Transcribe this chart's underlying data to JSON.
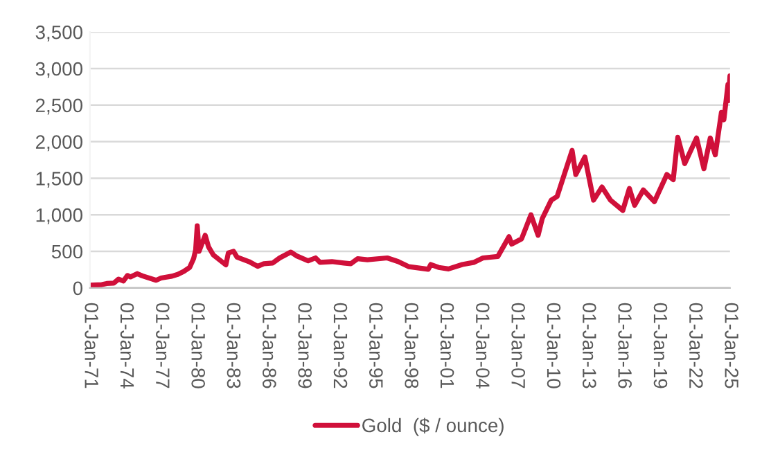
{
  "chart_data": {
    "type": "line",
    "x": [
      "1971-01-04",
      "1972-01-03",
      "1972-06-01",
      "1973-01-02",
      "1973-06-01",
      "1973-11-01",
      "1974-03-01",
      "1974-06-03",
      "1974-12-30",
      "1975-06-02",
      "1976-08-02",
      "1977-01-03",
      "1977-12-01",
      "1978-06-01",
      "1978-12-01",
      "1979-06-01",
      "1979-10-01",
      "1979-12-03",
      "1980-01-21",
      "1980-03-17",
      "1980-09-22",
      "1981-01-05",
      "1981-06-01",
      "1982-06-21",
      "1982-09-06",
      "1983-02-14",
      "1983-06-01",
      "1984-06-01",
      "1985-02-25",
      "1985-09-02",
      "1986-06-02",
      "1987-01-05",
      "1987-12-14",
      "1988-06-01",
      "1989-06-01",
      "1990-01-15",
      "1990-06-01",
      "1991-06-03",
      "1992-06-01",
      "1993-01-04",
      "1993-08-02",
      "1994-06-01",
      "1996-02-01",
      "1997-01-02",
      "1997-12-01",
      "1999-07-20",
      "1999-10-05",
      "2000-06-01",
      "2001-04-02",
      "2002-06-03",
      "2003-06-02",
      "2004-03-01",
      "2005-06-01",
      "2006-05-12",
      "2006-08-01",
      "2007-06-01",
      "2008-03-17",
      "2008-10-24",
      "2009-03-02",
      "2009-12-02",
      "2010-06-01",
      "2011-09-06",
      "2011-12-29",
      "2012-10-04",
      "2013-06-28",
      "2014-03-14",
      "2014-12-01",
      "2015-12-17",
      "2016-07-06",
      "2016-12-15",
      "2017-09-08",
      "2018-08-16",
      "2019-09-04",
      "2020-03-19",
      "2020-08-06",
      "2021-03-08",
      "2022-03-08",
      "2022-10-20",
      "2023-05-04",
      "2023-10-05",
      "2024-04-12",
      "2024-06-26",
      "2024-10-30",
      "2024-11-14",
      "2024-12-31"
    ],
    "series": [
      {
        "name": "Gold  ($ / ounce)",
        "color": "#d0103a",
        "values": [
          37,
          45,
          60,
          65,
          120,
          95,
          170,
          150,
          195,
          165,
          105,
          135,
          160,
          185,
          225,
          280,
          400,
          520,
          850,
          500,
          720,
          560,
          450,
          315,
          480,
          500,
          420,
          360,
          295,
          330,
          340,
          410,
          490,
          440,
          370,
          410,
          350,
          360,
          340,
          330,
          400,
          385,
          410,
          360,
          290,
          255,
          320,
          280,
          260,
          320,
          350,
          410,
          430,
          700,
          600,
          670,
          1000,
          720,
          950,
          1200,
          1250,
          1880,
          1550,
          1790,
          1200,
          1380,
          1200,
          1060,
          1360,
          1130,
          1340,
          1180,
          1550,
          1480,
          2060,
          1700,
          2050,
          1630,
          2050,
          1820,
          2400,
          2300,
          2780,
          2560,
          2900
        ]
      }
    ],
    "xlim": [
      "1971-01-01",
      "2025-01-01"
    ],
    "xticks": [
      {
        "value": "1971-01-01",
        "label": "01-Jan-71"
      },
      {
        "value": "1974-01-01",
        "label": "01-Jan-74"
      },
      {
        "value": "1977-01-01",
        "label": "01-Jan-77"
      },
      {
        "value": "1980-01-01",
        "label": "01-Jan-80"
      },
      {
        "value": "1983-01-01",
        "label": "01-Jan-83"
      },
      {
        "value": "1986-01-01",
        "label": "01-Jan-86"
      },
      {
        "value": "1989-01-01",
        "label": "01-Jan-89"
      },
      {
        "value": "1992-01-01",
        "label": "01-Jan-92"
      },
      {
        "value": "1995-01-01",
        "label": "01-Jan-95"
      },
      {
        "value": "1998-01-01",
        "label": "01-Jan-98"
      },
      {
        "value": "2001-01-01",
        "label": "01-Jan-01"
      },
      {
        "value": "2004-01-01",
        "label": "01-Jan-04"
      },
      {
        "value": "2007-01-01",
        "label": "01-Jan-07"
      },
      {
        "value": "2010-01-01",
        "label": "01-Jan-10"
      },
      {
        "value": "2013-01-01",
        "label": "01-Jan-13"
      },
      {
        "value": "2016-01-01",
        "label": "01-Jan-16"
      },
      {
        "value": "2019-01-01",
        "label": "01-Jan-19"
      },
      {
        "value": "2022-01-01",
        "label": "01-Jan-22"
      },
      {
        "value": "2025-01-01",
        "label": "01-Jan-25"
      }
    ],
    "ylim": [
      0,
      3500
    ],
    "yticks": [
      {
        "value": 0,
        "label": "0"
      },
      {
        "value": 500,
        "label": "500"
      },
      {
        "value": 1000,
        "label": "1,000"
      },
      {
        "value": 1500,
        "label": "1,500"
      },
      {
        "value": 2000,
        "label": "2,000"
      },
      {
        "value": 2500,
        "label": "2,500"
      },
      {
        "value": 3000,
        "label": "3,000"
      },
      {
        "value": 3500,
        "label": "3,500"
      }
    ],
    "grid": "y",
    "legend": "bottom",
    "marker": "none",
    "line_style": "solid"
  }
}
